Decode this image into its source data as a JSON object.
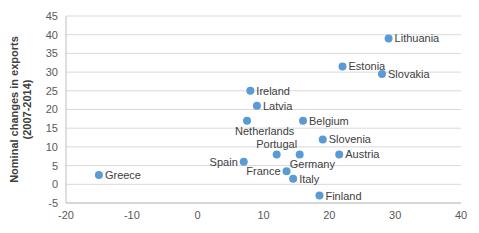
{
  "chart_data": {
    "type": "scatter",
    "y_label": "Nominal changes in exports\n(2007-2014)",
    "labels": [
      "Lithuania",
      "Estonia",
      "Slovakia",
      "Ireland",
      "Latvia",
      "Netherlands",
      "Belgium",
      "Slovenia",
      "Portugal",
      "Germany",
      "Austria",
      "Spain",
      "France",
      "Italy",
      "Finland",
      "Greece"
    ],
    "x": [
      29,
      22,
      28,
      8,
      9,
      7.5,
      16,
      19,
      12,
      15.5,
      21.5,
      7,
      13.5,
      14.5,
      18.5,
      -15
    ],
    "values": [
      39,
      31.5,
      29.5,
      25,
      21,
      17,
      17,
      12,
      8,
      8,
      8,
      6,
      3.5,
      1.5,
      -3,
      2.5
    ],
    "color": "#5b9bd5",
    "xlim": [
      -20,
      40
    ],
    "xticks": [
      -20,
      -10,
      0,
      10,
      20,
      30,
      40
    ],
    "ylim": [
      -5,
      45
    ],
    "yticks": [
      -5,
      0,
      5,
      10,
      15,
      20,
      25,
      30,
      35,
      40,
      45
    ],
    "grid": true,
    "data_labels": true,
    "marker": "circle"
  }
}
